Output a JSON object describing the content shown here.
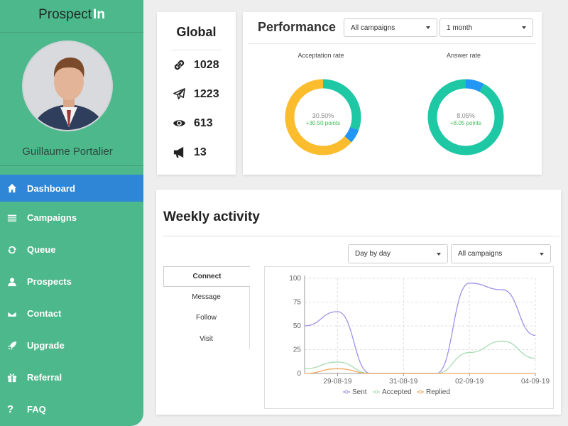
{
  "app": {
    "logo_text": "Prospect",
    "logo_accent": "In"
  },
  "user": {
    "name": "Guillaume Portalier"
  },
  "sidebar": {
    "items": [
      {
        "label": "Dashboard",
        "icon": "home-icon",
        "active": true
      },
      {
        "label": "Campaigns",
        "icon": "list-icon",
        "active": false
      },
      {
        "label": "Queue",
        "icon": "refresh-icon",
        "active": false
      },
      {
        "label": "Prospects",
        "icon": "user-icon",
        "active": false
      },
      {
        "label": "Contact",
        "icon": "envelope-icon",
        "active": false
      },
      {
        "label": "Upgrade",
        "icon": "rocket-icon",
        "active": false
      },
      {
        "label": "Referral",
        "icon": "gift-icon",
        "active": false
      },
      {
        "label": "FAQ",
        "icon": "question-icon",
        "active": false
      }
    ]
  },
  "global": {
    "title": "Global",
    "stats": [
      {
        "icon": "link-icon",
        "value": "1028"
      },
      {
        "icon": "paper-plane-icon",
        "value": "1223"
      },
      {
        "icon": "eye-icon",
        "value": "613"
      },
      {
        "icon": "megaphone-icon",
        "value": "13"
      }
    ]
  },
  "performance": {
    "title": "Performance",
    "campaign_filter": "All campaigns",
    "period_filter": "1 month",
    "acceptation": {
      "label": "Acceptation rate",
      "pct": "30.50%",
      "points": "+30.50 points"
    },
    "answer": {
      "label": "Answer rate",
      "pct": "8.05%",
      "points": "+8.05 points"
    }
  },
  "weekly": {
    "title": "Weekly activity",
    "granularity": "Day by day",
    "campaign_filter": "All campaigns",
    "tabs": [
      {
        "label": "Connect",
        "active": true
      },
      {
        "label": "Message",
        "active": false
      },
      {
        "label": "Follow",
        "active": false
      },
      {
        "label": "Visit",
        "active": false
      }
    ]
  },
  "colors": {
    "sidebar": "#4db88c",
    "active": "#2f86d6",
    "teal": "#1ec8a5",
    "yellow": "#fbbd2e",
    "blue": "#2196f3",
    "sent": "#9b93e6",
    "accepted": "#a8dcb4",
    "replied": "#f0a860"
  },
  "donuts": {
    "acceptation": [
      {
        "name": "teal",
        "fraction": 0.305
      },
      {
        "name": "blue",
        "fraction": 0.06
      },
      {
        "name": "yellow",
        "fraction": 0.635
      }
    ],
    "answer": [
      {
        "name": "blue",
        "fraction": 0.08
      },
      {
        "name": "teal",
        "fraction": 0.92
      }
    ]
  },
  "chart_data": {
    "type": "line",
    "x": [
      "28-08-19",
      "29-08-19",
      "30-08-19",
      "31-08-19",
      "01-09-19",
      "02-09-19",
      "03-09-19",
      "04-09-19"
    ],
    "tick_labels": [
      "29-08-19",
      "31-08-19",
      "02-09-19",
      "04-09-19"
    ],
    "ylim": [
      0,
      100
    ],
    "yticks": [
      0,
      25,
      50,
      75,
      100
    ],
    "grid": true,
    "legend": "bottom",
    "series": [
      {
        "name": "Sent",
        "color": "#9b93e6",
        "values": [
          50,
          65,
          0,
          0,
          0,
          95,
          88,
          40
        ]
      },
      {
        "name": "Accepted",
        "color": "#a8dcb4",
        "values": [
          5,
          12,
          0,
          0,
          0,
          22,
          34,
          16
        ]
      },
      {
        "name": "Replied",
        "color": "#f0a860",
        "values": [
          0,
          5,
          0,
          0,
          0,
          0,
          0,
          0
        ]
      }
    ]
  }
}
